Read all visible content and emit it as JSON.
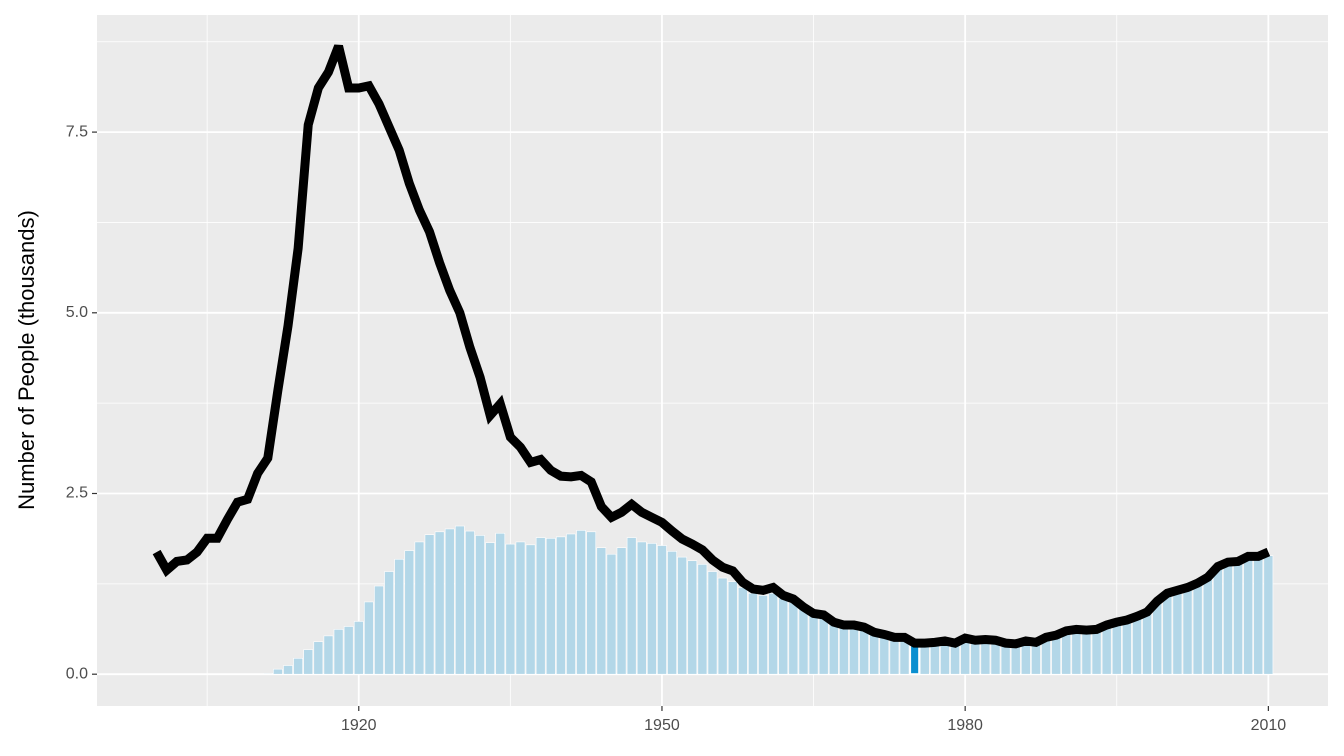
{
  "chart_data": {
    "type": "combo",
    "y_label": "Number of People (thousands)",
    "x": [
      1900,
      1901,
      1902,
      1903,
      1904,
      1905,
      1906,
      1907,
      1908,
      1909,
      1910,
      1911,
      1912,
      1913,
      1914,
      1915,
      1916,
      1917,
      1918,
      1919,
      1920,
      1921,
      1922,
      1923,
      1924,
      1925,
      1926,
      1927,
      1928,
      1929,
      1930,
      1931,
      1932,
      1933,
      1934,
      1935,
      1936,
      1937,
      1938,
      1939,
      1940,
      1941,
      1942,
      1943,
      1944,
      1945,
      1946,
      1947,
      1948,
      1949,
      1950,
      1951,
      1952,
      1953,
      1954,
      1955,
      1956,
      1957,
      1958,
      1959,
      1960,
      1961,
      1962,
      1963,
      1964,
      1965,
      1966,
      1967,
      1968,
      1969,
      1970,
      1971,
      1972,
      1973,
      1974,
      1975,
      1976,
      1977,
      1978,
      1979,
      1980,
      1981,
      1982,
      1983,
      1984,
      1985,
      1986,
      1987,
      1988,
      1989,
      1990,
      1991,
      1992,
      1993,
      1994,
      1995,
      1996,
      1997,
      1998,
      1999,
      2000,
      2001,
      2002,
      2003,
      2004,
      2005,
      2006,
      2007,
      2008,
      2009,
      2010
    ],
    "series": [
      {
        "type": "bar",
        "color": "#b3d7e8",
        "highlight_x": 1975,
        "highlight_color": "#0a8fd0",
        "values": [
          0,
          0,
          0,
          0,
          0,
          0,
          0,
          0,
          0,
          0,
          0,
          0.01,
          0.07,
          0.12,
          0.22,
          0.34,
          0.45,
          0.53,
          0.62,
          0.66,
          0.73,
          1.0,
          1.22,
          1.42,
          1.59,
          1.71,
          1.83,
          1.93,
          1.97,
          2.01,
          2.05,
          1.98,
          1.92,
          1.82,
          1.95,
          1.8,
          1.83,
          1.79,
          1.89,
          1.88,
          1.9,
          1.94,
          1.99,
          1.97,
          1.75,
          1.66,
          1.75,
          1.89,
          1.83,
          1.81,
          1.78,
          1.7,
          1.62,
          1.57,
          1.52,
          1.42,
          1.33,
          1.28,
          1.2,
          1.12,
          1.09,
          1.12,
          1.05,
          0.99,
          0.92,
          0.83,
          0.8,
          0.72,
          0.67,
          0.67,
          0.64,
          0.58,
          0.54,
          0.5,
          0.5,
          0.43,
          0.43,
          0.44,
          0.46,
          0.43,
          0.5,
          0.47,
          0.48,
          0.47,
          0.43,
          0.42,
          0.46,
          0.44,
          0.51,
          0.54,
          0.6,
          0.62,
          0.61,
          0.62,
          0.68,
          0.72,
          0.75,
          0.8,
          0.86,
          1.01,
          1.12,
          1.16,
          1.2,
          1.26,
          1.34,
          1.49,
          1.55,
          1.56,
          1.63,
          1.63,
          1.64
        ]
      },
      {
        "type": "line",
        "color": "#000000",
        "values": [
          1.69,
          1.44,
          1.56,
          1.58,
          1.69,
          1.88,
          1.88,
          2.14,
          2.38,
          2.42,
          2.78,
          2.99,
          3.93,
          4.82,
          5.89,
          7.6,
          8.11,
          8.33,
          8.69,
          8.11,
          8.11,
          8.14,
          7.89,
          7.57,
          7.25,
          6.79,
          6.42,
          6.12,
          5.69,
          5.31,
          5.0,
          4.52,
          4.11,
          3.58,
          3.74,
          3.28,
          3.14,
          2.93,
          2.97,
          2.82,
          2.74,
          2.73,
          2.75,
          2.66,
          2.32,
          2.17,
          2.24,
          2.35,
          2.24,
          2.17,
          2.1,
          1.98,
          1.87,
          1.8,
          1.72,
          1.58,
          1.48,
          1.43,
          1.27,
          1.18,
          1.16,
          1.2,
          1.09,
          1.04,
          0.93,
          0.84,
          0.82,
          0.72,
          0.68,
          0.68,
          0.65,
          0.58,
          0.55,
          0.51,
          0.51,
          0.43,
          0.43,
          0.44,
          0.46,
          0.43,
          0.5,
          0.47,
          0.48,
          0.47,
          0.43,
          0.42,
          0.46,
          0.44,
          0.51,
          0.54,
          0.6,
          0.62,
          0.61,
          0.62,
          0.68,
          0.72,
          0.75,
          0.8,
          0.86,
          1.01,
          1.12,
          1.16,
          1.2,
          1.26,
          1.34,
          1.49,
          1.55,
          1.56,
          1.63,
          1.63,
          1.69
        ]
      }
    ],
    "xlim": [
      1894.1,
      2015.9
    ],
    "xticks": [
      1920,
      1950,
      1980,
      2010
    ],
    "ylim": [
      -0.44,
      9.12
    ],
    "yticks": [
      {
        "value": 0,
        "label": "0.0"
      },
      2.5,
      {
        "value": 5,
        "label": "5.0"
      },
      7.5
    ],
    "grid": true,
    "minor_grid": true,
    "background": "#ebebeb"
  }
}
